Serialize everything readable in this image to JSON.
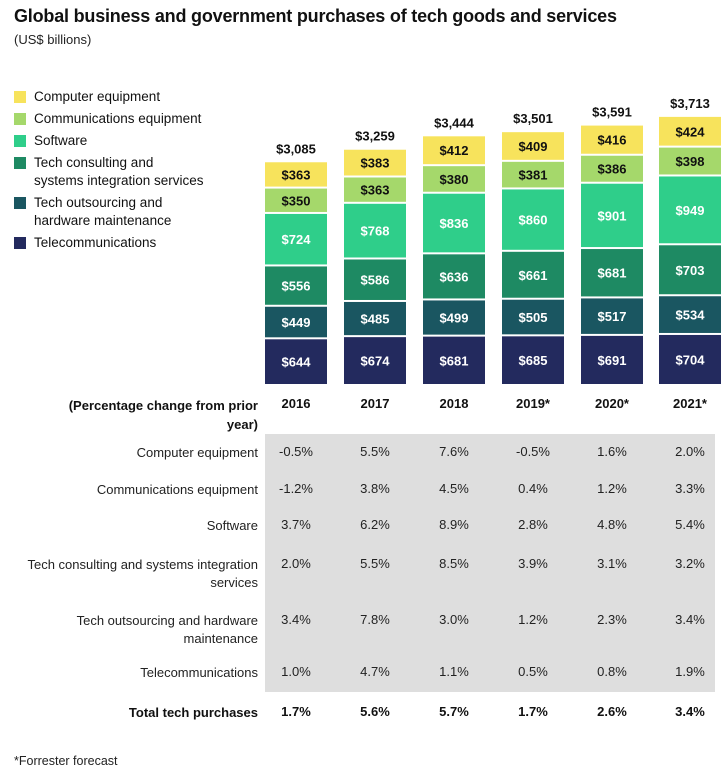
{
  "title": "Global business and government purchases of tech goods and services",
  "subtitle": "(US$ billions)",
  "legend": [
    {
      "label": "Computer equipment",
      "color": "#f7e35c"
    },
    {
      "label": "Communications equipment",
      "color": "#a5d86b"
    },
    {
      "label": "Software",
      "color": "#2fce8a"
    },
    {
      "label": "Tech consulting and systems integration services",
      "color": "#1e8a63"
    },
    {
      "label": "Tech outsourcing and hardware maintenance",
      "color": "#1a5661"
    },
    {
      "label": "Telecommunications",
      "color": "#232a5e"
    }
  ],
  "chart_data": {
    "type": "bar",
    "stacked": true,
    "categories": [
      "2016",
      "2017",
      "2018",
      "2019*",
      "2020*",
      "2021*"
    ],
    "totals": [
      "$3,085",
      "$3,259",
      "$3,444",
      "$3,501",
      "$3,591",
      "$3,713"
    ],
    "series": [
      {
        "name": "Telecommunications",
        "values": [
          644,
          674,
          681,
          685,
          691,
          704
        ],
        "labels": [
          "$644",
          "$674",
          "$681",
          "$685",
          "$691",
          "$704"
        ]
      },
      {
        "name": "Tech outsourcing and hardware maintenance",
        "values": [
          449,
          485,
          499,
          505,
          517,
          534
        ],
        "labels": [
          "$449",
          "$485",
          "$499",
          "$505",
          "$517",
          "$534"
        ]
      },
      {
        "name": "Tech consulting and systems integration services",
        "values": [
          556,
          586,
          636,
          661,
          681,
          703
        ],
        "labels": [
          "$556",
          "$586",
          "$636",
          "$661",
          "$681",
          "$703"
        ]
      },
      {
        "name": "Software",
        "values": [
          724,
          768,
          836,
          860,
          901,
          949
        ],
        "labels": [
          "$724",
          "$768",
          "$836",
          "$860",
          "$901",
          "$949"
        ]
      },
      {
        "name": "Communications equipment",
        "values": [
          350,
          363,
          380,
          381,
          386,
          398
        ],
        "labels": [
          "$350",
          "$363",
          "$380",
          "$381",
          "$386",
          "$398"
        ]
      },
      {
        "name": "Computer equipment",
        "values": [
          363,
          383,
          412,
          409,
          416,
          424
        ],
        "labels": [
          "$363",
          "$383",
          "$412",
          "$409",
          "$416",
          "$424"
        ]
      }
    ],
    "label_colors": [
      "#ffffff",
      "#ffffff",
      "#ffffff",
      "#ffffff",
      "#111111",
      "#111111"
    ]
  },
  "table": {
    "header": "(Percentage change from prior year)",
    "years": [
      "2016",
      "2017",
      "2018",
      "2019*",
      "2020*",
      "2021*"
    ],
    "rows": [
      {
        "label": "Computer equipment",
        "values": [
          "-0.5%",
          "5.5%",
          "7.6%",
          "-0.5%",
          "1.6%",
          "2.0%"
        ]
      },
      {
        "label": "Communications equipment",
        "values": [
          "-1.2%",
          "3.8%",
          "4.5%",
          "0.4%",
          "1.2%",
          "3.3%"
        ]
      },
      {
        "label": "Software",
        "values": [
          "3.7%",
          "6.2%",
          "8.9%",
          "2.8%",
          "4.8%",
          "5.4%"
        ]
      },
      {
        "label": "Tech consulting and systems integration services",
        "values": [
          "2.0%",
          "5.5%",
          "8.5%",
          "3.9%",
          "3.1%",
          "3.2%"
        ]
      },
      {
        "label": "Tech outsourcing and hardware maintenance",
        "values": [
          "3.4%",
          "7.8%",
          "3.0%",
          "1.2%",
          "2.3%",
          "3.4%"
        ]
      },
      {
        "label": "Telecommunications",
        "values": [
          "1.0%",
          "4.7%",
          "1.1%",
          "0.5%",
          "0.8%",
          "1.9%"
        ]
      }
    ],
    "total": {
      "label": "Total tech purchases",
      "values": [
        "1.7%",
        "5.6%",
        "5.7%",
        "1.7%",
        "2.6%",
        "3.4%"
      ]
    }
  },
  "footnote": "*Forrester forecast"
}
